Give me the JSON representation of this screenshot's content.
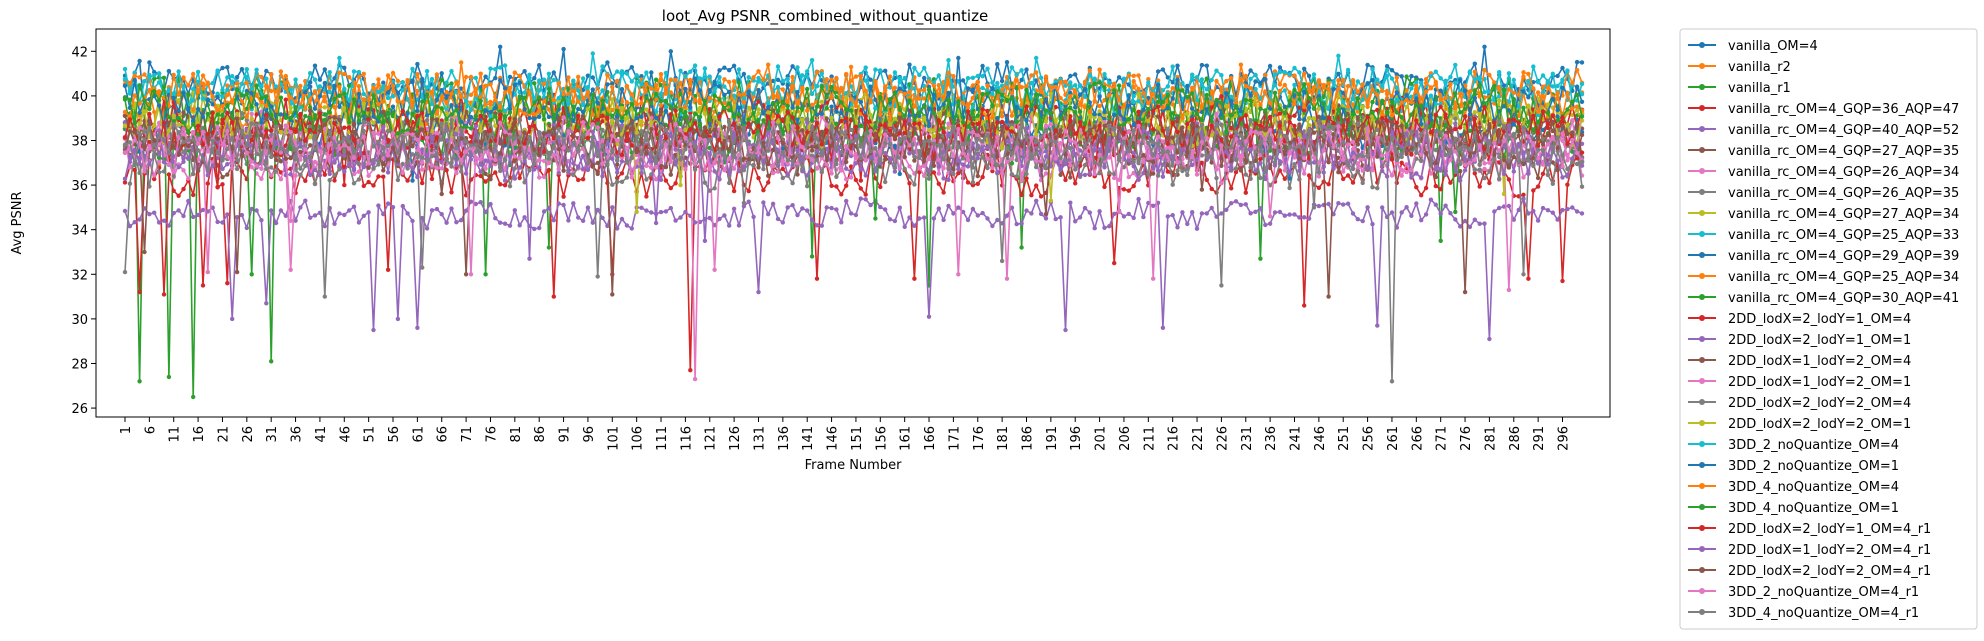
{
  "chart_data": {
    "type": "line",
    "title": "loot_Avg PSNR_combined_without_quantize",
    "xlabel": "Frame Number",
    "ylabel": "Avg PSNR",
    "x_range": [
      1,
      300
    ],
    "x_ticks": [
      1,
      6,
      11,
      16,
      21,
      26,
      31,
      36,
      41,
      46,
      51,
      56,
      61,
      66,
      71,
      76,
      81,
      86,
      91,
      96,
      101,
      106,
      111,
      116,
      121,
      126,
      131,
      136,
      141,
      146,
      151,
      156,
      161,
      166,
      171,
      176,
      181,
      186,
      191,
      196,
      201,
      206,
      211,
      216,
      221,
      226,
      231,
      236,
      241,
      246,
      251,
      256,
      261,
      266,
      271,
      276,
      281,
      286,
      291,
      296
    ],
    "ylim": [
      25.6,
      43.0
    ],
    "y_ticks": [
      26,
      28,
      30,
      32,
      34,
      36,
      38,
      40,
      42
    ],
    "grid": false,
    "legend_position": "outside-right",
    "series": [
      {
        "name": "vanilla_OM=4",
        "color": "#1f77b4",
        "mean": 40.6,
        "amp": 0.7,
        "lows": [
          [
            5,
            39.3
          ],
          [
            6,
            41.5
          ],
          [
            28,
            41.0
          ],
          [
            78,
            42.2
          ],
          [
            91,
            42.1
          ],
          [
            113,
            42.0
          ],
          [
            280,
            42.2
          ],
          [
            300,
            41.5
          ]
        ]
      },
      {
        "name": "vanilla_r2",
        "color": "#ff7f0e",
        "mean": 39.8,
        "amp": 0.9,
        "lows": [
          [
            8,
            36.9
          ],
          [
            40,
            38.0
          ],
          [
            105,
            37.8
          ],
          [
            200,
            38.3
          ],
          [
            265,
            38.1
          ]
        ]
      },
      {
        "name": "vanilla_r1",
        "color": "#2ca02c",
        "mean": 39.6,
        "amp": 1.0,
        "lows": [
          [
            4,
            27.2
          ],
          [
            10,
            27.4
          ],
          [
            15,
            26.5
          ],
          [
            31,
            28.1
          ],
          [
            75,
            32.0
          ],
          [
            88,
            33.2
          ],
          [
            142,
            32.8
          ],
          [
            166,
            31.5
          ],
          [
            185,
            33.2
          ],
          [
            234,
            32.7
          ],
          [
            271,
            33.5
          ]
        ]
      },
      {
        "name": "vanilla_rc_OM=4_GQP=36_AQP=47",
        "color": "#d62728",
        "mean": 36.5,
        "amp": 0.8,
        "lows": [
          [
            4,
            31.2
          ],
          [
            9,
            31.1
          ],
          [
            17,
            31.5
          ],
          [
            22,
            31.6
          ],
          [
            55,
            32.2
          ],
          [
            89,
            31.0
          ],
          [
            101,
            32.0
          ],
          [
            117,
            27.7
          ],
          [
            143,
            31.8
          ],
          [
            163,
            31.8
          ],
          [
            204,
            32.5
          ],
          [
            243,
            30.6
          ],
          [
            289,
            31.8
          ],
          [
            296,
            31.7
          ]
        ]
      },
      {
        "name": "vanilla_rc_OM=4_GQP=40_AQP=52",
        "color": "#9467bd",
        "mean": 34.7,
        "amp": 0.5,
        "lows": [
          [
            23,
            30.0
          ],
          [
            30,
            30.7
          ],
          [
            52,
            29.5
          ],
          [
            57,
            30.0
          ],
          [
            61,
            29.6
          ],
          [
            131,
            31.2
          ],
          [
            166,
            30.1
          ],
          [
            194,
            29.5
          ],
          [
            214,
            29.6
          ],
          [
            258,
            29.7
          ],
          [
            281,
            29.1
          ]
        ]
      },
      {
        "name": "vanilla_rc_OM=4_GQP=27_AQP=35",
        "color": "#8c564b",
        "mean": 37.5,
        "amp": 0.9,
        "lows": [
          [
            5,
            33.0
          ],
          [
            24,
            32.1
          ],
          [
            71,
            32.0
          ],
          [
            101,
            31.1
          ],
          [
            248,
            31.0
          ],
          [
            276,
            31.2
          ]
        ]
      },
      {
        "name": "vanilla_rc_OM=4_GQP=26_AQP=34",
        "color": "#e377c2",
        "mean": 37.2,
        "amp": 0.8,
        "lows": [
          [
            18,
            32.1
          ],
          [
            35,
            32.2
          ],
          [
            72,
            32.0
          ],
          [
            118,
            27.3
          ],
          [
            122,
            32.2
          ],
          [
            172,
            32.0
          ],
          [
            182,
            31.8
          ],
          [
            212,
            31.8
          ],
          [
            285,
            31.3
          ]
        ]
      },
      {
        "name": "vanilla_rc_OM=4_GQP=26_AQP=35",
        "color": "#7f7f7f",
        "mean": 37.0,
        "amp": 0.9,
        "lows": [
          [
            1,
            32.1
          ],
          [
            42,
            31.0
          ],
          [
            62,
            32.3
          ],
          [
            98,
            31.9
          ],
          [
            181,
            32.6
          ],
          [
            226,
            31.5
          ],
          [
            261,
            27.2
          ],
          [
            288,
            32.0
          ]
        ]
      },
      {
        "name": "vanilla_rc_OM=4_GQP=27_AQP=34",
        "color": "#bcbd22",
        "mean": 39.0,
        "amp": 0.8,
        "lows": [
          [
            106,
            34.8
          ],
          [
            191,
            35.3
          ],
          [
            284,
            35.6
          ]
        ]
      },
      {
        "name": "vanilla_rc_OM=4_GQP=25_AQP=33",
        "color": "#17becf",
        "mean": 40.3,
        "amp": 0.8,
        "lows": [
          [
            45,
            41.7
          ],
          [
            97,
            41.9
          ],
          [
            142,
            41.6
          ],
          [
            188,
            41.7
          ],
          [
            250,
            41.8
          ]
        ]
      },
      {
        "name": "vanilla_rc_OM=4_GQP=29_AQP=39",
        "color": "#1f77b4",
        "mean": 38.6,
        "amp": 0.9,
        "lows": [
          [
            60,
            36.2
          ],
          [
            160,
            36.5
          ],
          [
            240,
            36.3
          ]
        ]
      },
      {
        "name": "vanilla_rc_OM=4_GQP=25_AQP=34",
        "color": "#ff7f0e",
        "mean": 40.1,
        "amp": 0.8,
        "lows": [
          [
            70,
            41.5
          ],
          [
            150,
            41.3
          ],
          [
            230,
            41.4
          ]
        ]
      },
      {
        "name": "vanilla_rc_OM=4_GQP=30_AQP=41",
        "color": "#2ca02c",
        "mean": 38.2,
        "amp": 0.9,
        "lows": [
          [
            27,
            32.0
          ],
          [
            155,
            34.5
          ],
          [
            274,
            34.8
          ]
        ]
      },
      {
        "name": "2DD_lodX=2_lodY=1_OM=4",
        "color": "#d62728",
        "mean": 38.8,
        "amp": 0.9,
        "lows": [
          [
            46,
            36.0
          ],
          [
            200,
            36.4
          ]
        ]
      },
      {
        "name": "2DD_lodX=2_lodY=1_OM=1",
        "color": "#9467bd",
        "mean": 37.6,
        "amp": 1.0,
        "lows": [
          [
            84,
            32.7
          ],
          [
            120,
            33.5
          ]
        ]
      },
      {
        "name": "2DD_lodX=1_lodY=2_OM=4",
        "color": "#8c564b",
        "mean": 38.4,
        "amp": 0.9,
        "lows": [
          [
            66,
            35.6
          ],
          [
            222,
            35.8
          ]
        ]
      },
      {
        "name": "2DD_lodX=1_lodY=2_OM=1",
        "color": "#e377c2",
        "mean": 37.9,
        "amp": 1.0,
        "lows": [
          [
            35,
            34.4
          ],
          [
            236,
            34.6
          ]
        ]
      },
      {
        "name": "2DD_lodX=2_lodY=2_OM=4",
        "color": "#7f7f7f",
        "mean": 38.1,
        "amp": 0.9,
        "lows": [
          [
            128,
            35.2
          ]
        ]
      },
      {
        "name": "2DD_lodX=2_lodY=2_OM=1",
        "color": "#bcbd22",
        "mean": 38.9,
        "amp": 0.9,
        "lows": [
          [
            115,
            36.0
          ]
        ]
      },
      {
        "name": "3DD_2_noQuantize_OM=4",
        "color": "#17becf",
        "mean": 40.2,
        "amp": 0.8,
        "lows": [
          [
            170,
            41.6
          ]
        ]
      },
      {
        "name": "3DD_2_noQuantize_OM=1",
        "color": "#1f77b4",
        "mean": 39.7,
        "amp": 0.8,
        "lows": [
          [
            172,
            41.7
          ]
        ]
      },
      {
        "name": "3DD_4_noQuantize_OM=4",
        "color": "#ff7f0e",
        "mean": 40.0,
        "amp": 0.8,
        "lows": [
          [
            133,
            41.4
          ]
        ]
      },
      {
        "name": "3DD_4_noQuantize_OM=1",
        "color": "#2ca02c",
        "mean": 39.4,
        "amp": 0.9,
        "lows": [
          [
            80,
            36.9
          ]
        ]
      },
      {
        "name": "2DD_lodX=2_lodY=1_OM=4_r1",
        "color": "#d62728",
        "mean": 38.3,
        "amp": 0.9,
        "lows": [
          [
            20,
            35.9
          ],
          [
            152,
            36.2
          ]
        ]
      },
      {
        "name": "2DD_lodX=1_lodY=2_OM=4_r1",
        "color": "#9467bd",
        "mean": 37.4,
        "amp": 1.0,
        "lows": [
          [
            110,
            34.3
          ]
        ]
      },
      {
        "name": "2DD_lodX=2_lodY=2_OM=4_r1",
        "color": "#8c564b",
        "mean": 37.8,
        "amp": 0.9,
        "lows": [
          [
            190,
            34.7
          ]
        ]
      },
      {
        "name": "3DD_2_noQuantize_OM=4_r1",
        "color": "#e377c2",
        "mean": 37.6,
        "amp": 0.9,
        "lows": [
          [
            205,
            34.8
          ]
        ]
      },
      {
        "name": "3DD_4_noQuantize_OM=4_r1",
        "color": "#7f7f7f",
        "mean": 37.7,
        "amp": 0.9,
        "lows": [
          [
            245,
            35.0
          ]
        ]
      }
    ]
  }
}
